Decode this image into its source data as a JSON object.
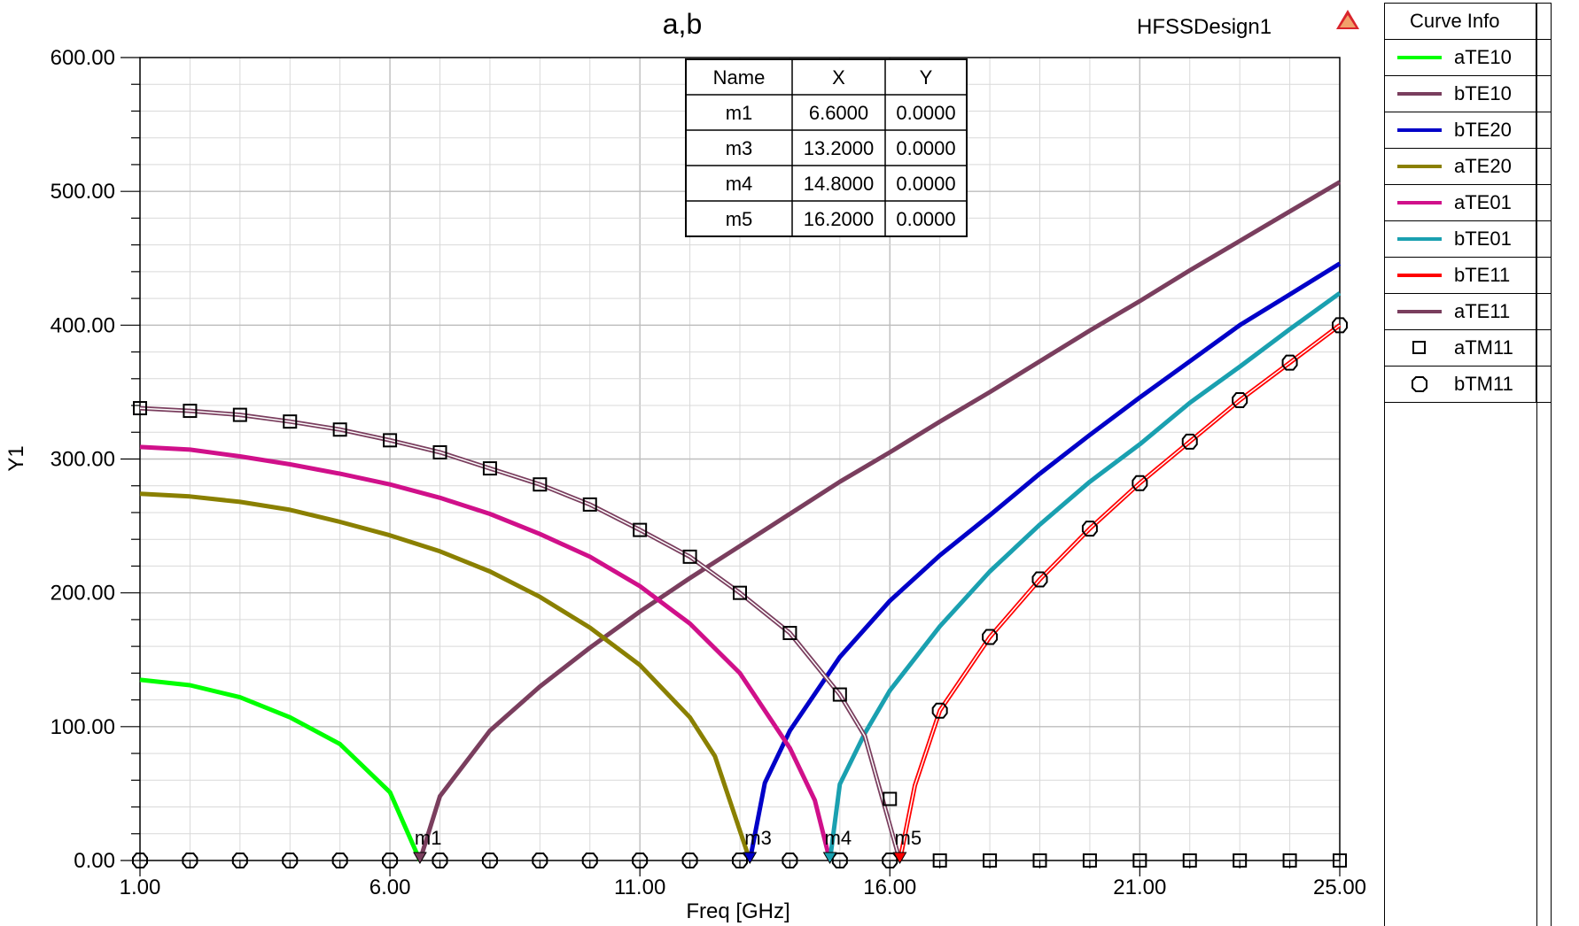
{
  "header": {
    "title": "a,b",
    "design_name": "HFSSDesign1"
  },
  "marker_table": {
    "columns": [
      "Name",
      "X",
      "Y"
    ],
    "rows": [
      [
        "m1",
        "6.6000",
        "0.0000"
      ],
      [
        "m3",
        "13.2000",
        "0.0000"
      ],
      [
        "m4",
        "14.8000",
        "0.0000"
      ],
      [
        "m5",
        "16.2000",
        "0.0000"
      ]
    ]
  },
  "curve_info": {
    "title": "Curve Info",
    "items": [
      {
        "name": "aTE10",
        "color": "#00ff00",
        "style": "line"
      },
      {
        "name": "bTE10",
        "color": "#7a3e5e",
        "style": "line"
      },
      {
        "name": "bTE20",
        "color": "#0000c8",
        "style": "line"
      },
      {
        "name": "aTE20",
        "color": "#8a8000",
        "style": "line"
      },
      {
        "name": "aTE01",
        "color": "#d0108a",
        "style": "line"
      },
      {
        "name": "bTE01",
        "color": "#1aa0b0",
        "style": "line"
      },
      {
        "name": "bTE11",
        "color": "#ff0000",
        "style": "line"
      },
      {
        "name": "aTE11",
        "color": "#7a3e5e",
        "style": "line"
      },
      {
        "name": "aTM11",
        "color": "#000000",
        "style": "square"
      },
      {
        "name": "bTM11",
        "color": "#000000",
        "style": "circle"
      }
    ]
  },
  "chart_data": {
    "type": "line",
    "title": "a,b",
    "xlabel": "Freq [GHz]",
    "ylabel": "Y1",
    "xlim": [
      1,
      25
    ],
    "ylim": [
      0,
      600
    ],
    "xticks": [
      "1.00",
      "6.00",
      "11.00",
      "16.00",
      "21.00",
      "25.00"
    ],
    "yticks": [
      "0.00",
      "100.00",
      "200.00",
      "300.00",
      "400.00",
      "500.00",
      "600.00"
    ],
    "grid": true,
    "legend": "right",
    "series": [
      {
        "name": "aTE10",
        "color": "#00ff00",
        "x": [
          1,
          2,
          3,
          4,
          5,
          6,
          6.6
        ],
        "y": [
          135,
          131,
          122,
          107,
          87,
          51,
          0
        ]
      },
      {
        "name": "bTE10",
        "color": "#7a3e5e",
        "x": [
          6.6,
          7,
          8,
          9,
          10,
          11,
          12,
          13,
          14,
          15,
          16,
          17,
          18,
          19,
          20,
          21,
          22,
          23,
          24,
          25
        ],
        "y": [
          0,
          48,
          97,
          130,
          159,
          186,
          211,
          235,
          259,
          283,
          305,
          328,
          350,
          373,
          396,
          418,
          441,
          463,
          485,
          507
        ]
      },
      {
        "name": "bTE20",
        "color": "#0000c8",
        "x": [
          13.2,
          13.5,
          14,
          15,
          16,
          17,
          18,
          19,
          20,
          21,
          22,
          23,
          24,
          25
        ],
        "y": [
          0,
          58,
          97,
          152,
          194,
          228,
          258,
          289,
          318,
          346,
          373,
          400,
          423,
          446
        ]
      },
      {
        "name": "aTE20",
        "color": "#8a8000",
        "x": [
          1,
          2,
          3,
          4,
          5,
          6,
          7,
          8,
          9,
          10,
          11,
          12,
          12.5,
          13.2
        ],
        "y": [
          274,
          272,
          268,
          262,
          253,
          243,
          231,
          216,
          197,
          174,
          146,
          107,
          78,
          0
        ]
      },
      {
        "name": "aTE01",
        "color": "#d0108a",
        "x": [
          1,
          2,
          3,
          4,
          5,
          6,
          7,
          8,
          9,
          10,
          11,
          12,
          13,
          14,
          14.5,
          14.8
        ],
        "y": [
          309,
          307,
          302,
          296,
          289,
          281,
          271,
          259,
          244,
          227,
          205,
          177,
          140,
          84,
          45,
          0
        ]
      },
      {
        "name": "bTE01",
        "color": "#1aa0b0",
        "x": [
          14.8,
          15,
          15.5,
          16,
          17,
          18,
          19,
          20,
          21,
          22,
          23,
          24,
          25
        ],
        "y": [
          0,
          57,
          95,
          127,
          175,
          216,
          251,
          283,
          311,
          342,
          369,
          397,
          424
        ]
      },
      {
        "name": "bTE11",
        "color": "#ff0000",
        "x": [
          16.2,
          16.5,
          17,
          18,
          19,
          20,
          21,
          22,
          23,
          24,
          25
        ],
        "y": [
          0,
          56,
          112,
          167,
          210,
          248,
          282,
          313,
          344,
          372,
          400
        ]
      },
      {
        "name": "aTE11",
        "color": "#7a3e5e",
        "x": [
          1,
          2,
          3,
          4,
          5,
          6,
          7,
          8,
          9,
          10,
          11,
          12,
          13,
          14,
          15,
          15.5,
          16.2
        ],
        "y": [
          338,
          336,
          333,
          328,
          322,
          314,
          305,
          293,
          281,
          266,
          247,
          227,
          200,
          170,
          124,
          93,
          0
        ]
      },
      {
        "name": "aTM11",
        "color": "#000000",
        "marker": "square",
        "x": [
          1,
          2,
          3,
          4,
          5,
          6,
          7,
          8,
          9,
          10,
          11,
          12,
          13,
          14,
          15,
          16,
          17,
          18,
          19,
          20,
          21,
          22,
          23,
          24,
          25
        ],
        "y": [
          338,
          336,
          333,
          328,
          322,
          314,
          305,
          293,
          281,
          266,
          247,
          227,
          200,
          170,
          124,
          46,
          0,
          0,
          0,
          0,
          0,
          0,
          0,
          0,
          0
        ]
      },
      {
        "name": "bTM11",
        "color": "#000000",
        "marker": "circle",
        "x": [
          1,
          2,
          3,
          4,
          5,
          6,
          7,
          8,
          9,
          10,
          11,
          12,
          13,
          14,
          15,
          16,
          17,
          18,
          19,
          20,
          21,
          22,
          23,
          24,
          25
        ],
        "y": [
          0,
          0,
          0,
          0,
          0,
          0,
          0,
          0,
          0,
          0,
          0,
          0,
          0,
          0,
          0,
          0,
          112,
          167,
          210,
          248,
          282,
          313,
          344,
          372,
          400
        ]
      }
    ],
    "markers": [
      {
        "name": "m1",
        "x": 6.6,
        "y": 0,
        "color": "#7a3e5e"
      },
      {
        "name": "m3",
        "x": 13.2,
        "y": 0,
        "color": "#0000c8"
      },
      {
        "name": "m4",
        "x": 14.8,
        "y": 0,
        "color": "#1aa0b0"
      },
      {
        "name": "m5",
        "x": 16.2,
        "y": 0,
        "color": "#ff0000"
      }
    ]
  }
}
